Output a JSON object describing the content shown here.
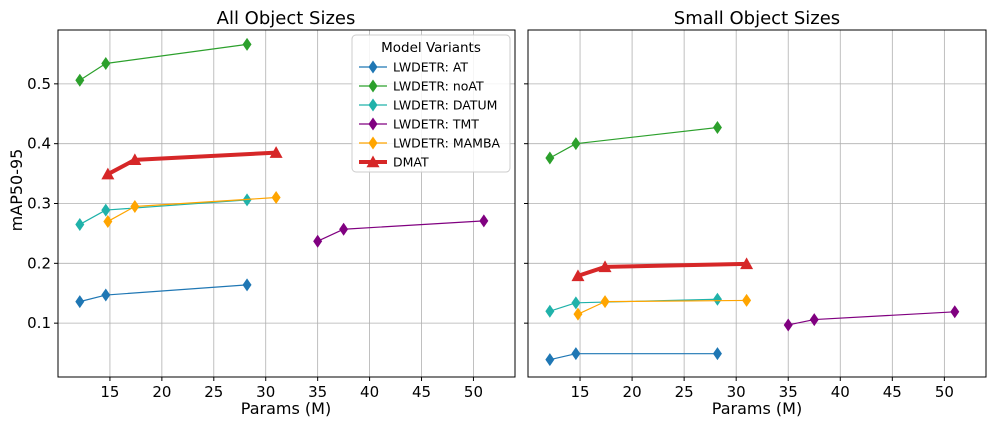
{
  "chart_data": [
    {
      "type": "line",
      "title": "All Object Sizes",
      "xlabel": "Params (M)",
      "ylabel": "mAP50-95",
      "xlim": [
        10,
        54
      ],
      "ylim": [
        0.01,
        0.59
      ],
      "xticks": [
        15,
        20,
        25,
        30,
        35,
        40,
        45,
        50
      ],
      "yticks": [
        0.1,
        0.2,
        0.3,
        0.4,
        0.5
      ],
      "grid": true,
      "legend_title": "Model Variants",
      "legend_position": "top-right",
      "series": [
        {
          "name": "LWDETR: AT",
          "color": "#1f77b4",
          "marker": "diamond",
          "x": [
            12.1,
            14.6,
            28.2
          ],
          "y": [
            0.136,
            0.147,
            0.164
          ]
        },
        {
          "name": "LWDETR: noAT",
          "color": "#2ca02c",
          "marker": "diamond",
          "x": [
            12.1,
            14.6,
            28.2
          ],
          "y": [
            0.506,
            0.534,
            0.566
          ]
        },
        {
          "name": "LWDETR: DATUM",
          "color": "#20b2aa",
          "marker": "diamond",
          "x": [
            12.1,
            14.6,
            28.2
          ],
          "y": [
            0.265,
            0.289,
            0.306
          ]
        },
        {
          "name": "LWDETR: TMT",
          "color": "#800080",
          "marker": "diamond",
          "x": [
            35.0,
            37.5,
            51.0
          ],
          "y": [
            0.237,
            0.257,
            0.271
          ]
        },
        {
          "name": "LWDETR: MAMBA",
          "color": "#ffa500",
          "marker": "diamond",
          "x": [
            14.8,
            17.4,
            31.0
          ],
          "y": [
            0.27,
            0.295,
            0.31
          ]
        },
        {
          "name": "DMAT",
          "color": "#d62728",
          "marker": "triangle",
          "bold": true,
          "x": [
            14.8,
            17.4,
            31.0
          ],
          "y": [
            0.349,
            0.373,
            0.385
          ]
        }
      ]
    },
    {
      "type": "line",
      "title": "Small Object Sizes",
      "xlabel": "Params (M)",
      "ylabel": "",
      "xlim": [
        10,
        54
      ],
      "ylim": [
        0.01,
        0.59
      ],
      "xticks": [
        15,
        20,
        25,
        30,
        35,
        40,
        45,
        50
      ],
      "yticks": [
        0.1,
        0.2,
        0.3,
        0.4,
        0.5
      ],
      "grid": true,
      "series": [
        {
          "name": "LWDETR: AT",
          "color": "#1f77b4",
          "marker": "diamond",
          "x": [
            12.1,
            14.6,
            28.2
          ],
          "y": [
            0.039,
            0.049,
            0.049
          ]
        },
        {
          "name": "LWDETR: noAT",
          "color": "#2ca02c",
          "marker": "diamond",
          "x": [
            12.1,
            14.6,
            28.2
          ],
          "y": [
            0.376,
            0.4,
            0.427
          ]
        },
        {
          "name": "LWDETR: DATUM",
          "color": "#20b2aa",
          "marker": "diamond",
          "x": [
            12.1,
            14.6,
            28.2
          ],
          "y": [
            0.12,
            0.134,
            0.14
          ]
        },
        {
          "name": "LWDETR: TMT",
          "color": "#800080",
          "marker": "diamond",
          "x": [
            35.0,
            37.5,
            51.0
          ],
          "y": [
            0.097,
            0.106,
            0.119
          ]
        },
        {
          "name": "LWDETR: MAMBA",
          "color": "#ffa500",
          "marker": "diamond",
          "x": [
            14.8,
            17.4,
            31.0
          ],
          "y": [
            0.115,
            0.136,
            0.138
          ]
        },
        {
          "name": "DMAT",
          "color": "#d62728",
          "marker": "triangle",
          "bold": true,
          "x": [
            14.8,
            17.4,
            31.0
          ],
          "y": [
            0.179,
            0.194,
            0.199
          ]
        }
      ]
    }
  ]
}
